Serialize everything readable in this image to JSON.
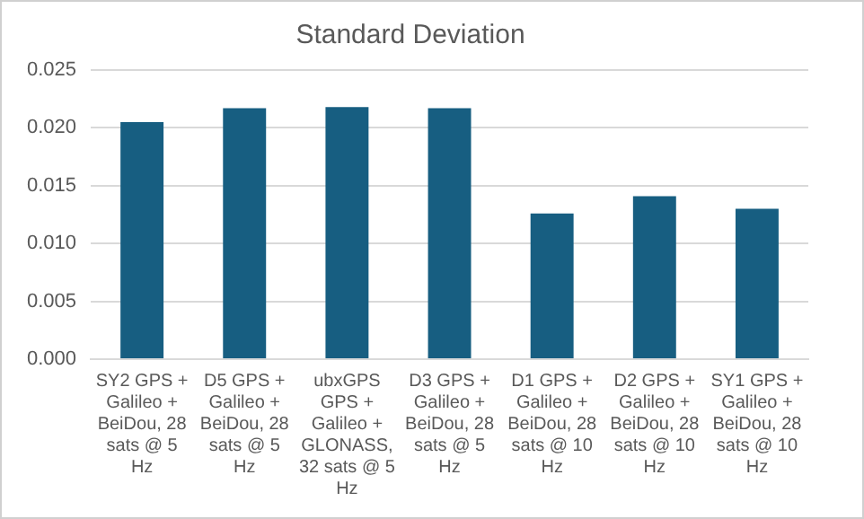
{
  "chart_data": {
    "type": "bar",
    "title": "Standard Deviation",
    "categories": [
      "SY2 GPS + Galileo + BeiDou, 28 sats @ 5 Hz",
      "D5 GPS + Galileo + BeiDou, 28 sats @ 5 Hz",
      "ubxGPS GPS + Galileo + GLONASS, 32 sats @ 5 Hz",
      "D3 GPS + Galileo + BeiDou, 28 sats @ 5 Hz",
      "D1 GPS + Galileo + BeiDou, 28 sats @ 10 Hz",
      "D2 GPS + Galileo + BeiDou, 28 sats @ 10 Hz",
      "SY1 GPS + Galileo + BeiDou, 28 sats @ 10 Hz"
    ],
    "values": [
      0.0205,
      0.0217,
      0.0218,
      0.0217,
      0.0126,
      0.0141,
      0.013
    ],
    "color": "#175e81",
    "ylim": [
      0,
      0.025
    ],
    "yticks": [
      {
        "value": 0,
        "label": "0.000"
      },
      {
        "value": 0.005,
        "label": "0.005"
      },
      {
        "value": 0.01,
        "label": "0.010"
      },
      {
        "value": 0.015,
        "label": "0.015"
      },
      {
        "value": 0.02,
        "label": "0.020"
      },
      {
        "value": 0.025,
        "label": "0.025"
      }
    ],
    "grid": "y",
    "legend": false
  }
}
